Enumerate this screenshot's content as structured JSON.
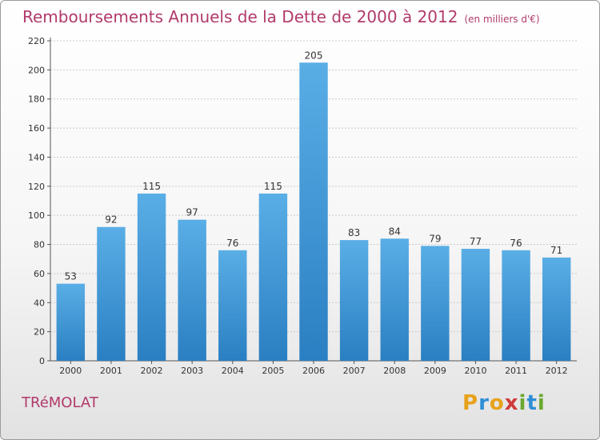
{
  "title": "Remboursements Annuels de la Dette de 2000 à 2012",
  "subtitle": "(en milliers d'€)",
  "commune": "TRéMOLAT",
  "logo": {
    "letters": [
      "P",
      "r",
      "o",
      "x",
      "i",
      "t",
      "i"
    ],
    "colors": [
      "#e8a21a",
      "#2e8fd6",
      "#e8a21a",
      "#d03a3a",
      "#6aa82f",
      "#2e8fd6",
      "#6aa82f"
    ]
  },
  "colors": {
    "bar": "#4aa0dd",
    "bar_dark": "#2a7fc2",
    "title": "#b13a6b"
  },
  "chart_data": {
    "type": "bar",
    "categories": [
      "2000",
      "2001",
      "2002",
      "2003",
      "2004",
      "2005",
      "2006",
      "2007",
      "2008",
      "2009",
      "2010",
      "2011",
      "2012"
    ],
    "values": [
      53,
      92,
      115,
      97,
      76,
      115,
      205,
      83,
      84,
      79,
      77,
      76,
      71
    ],
    "value_labels": [
      "53",
      "92",
      "115",
      "97",
      "76",
      "115",
      "205",
      "83",
      "84",
      "79",
      "77",
      "76",
      "71"
    ],
    "ylim": [
      0,
      220
    ],
    "yticks": [
      0,
      20,
      40,
      60,
      80,
      100,
      120,
      140,
      160,
      180,
      200,
      220
    ],
    "ytick_labels": [
      "0",
      "20",
      "40",
      "60",
      "80",
      "100",
      "120",
      "140",
      "160",
      "180",
      "200",
      "220"
    ],
    "grid": true,
    "legend": "none"
  }
}
